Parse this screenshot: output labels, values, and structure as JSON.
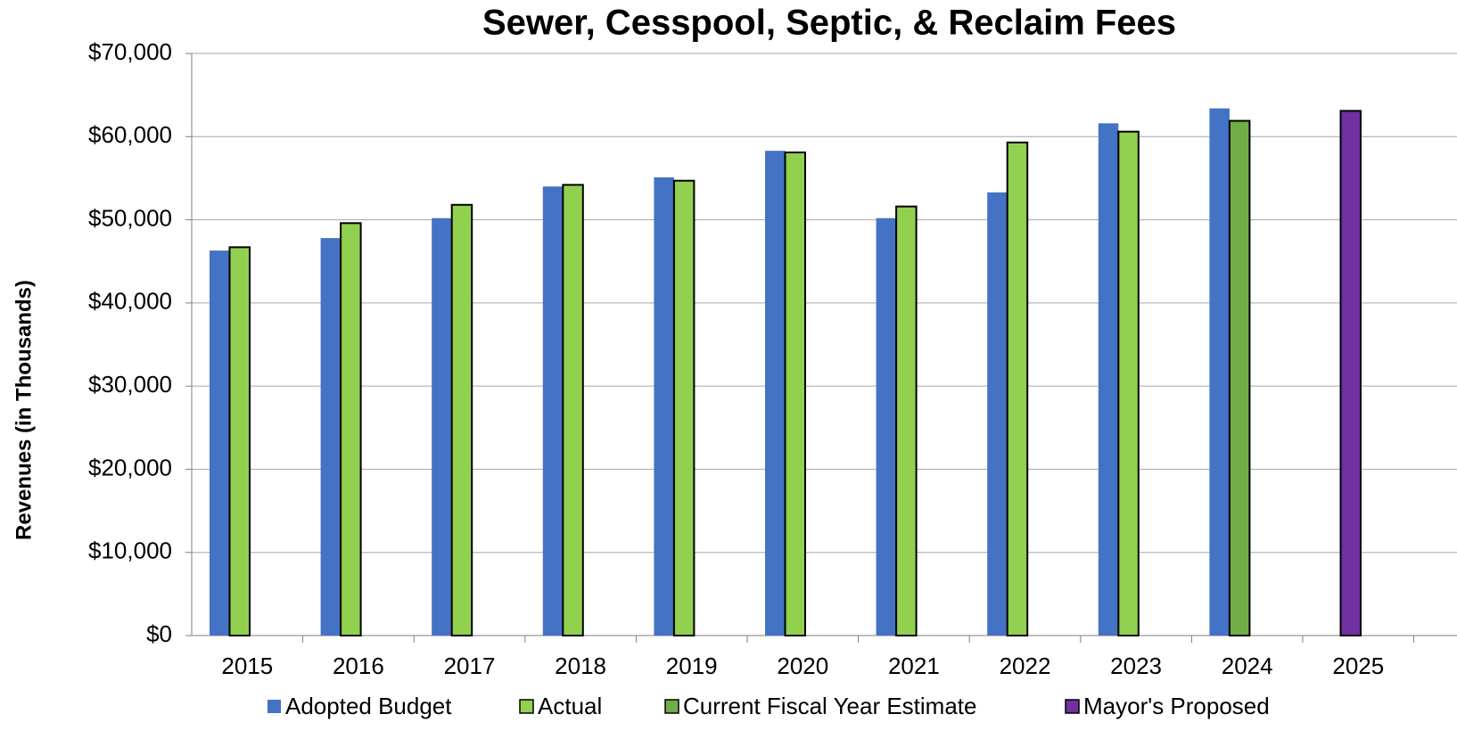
{
  "chart_data": {
    "type": "bar",
    "title": "Sewer, Cesspool, Septic, & Reclaim Fees",
    "ylabel": "Revenues (in Thousands)",
    "categories": [
      "2015",
      "2016",
      "2017",
      "2018",
      "2019",
      "2020",
      "2021",
      "2022",
      "2023",
      "2024",
      "2025"
    ],
    "series": [
      {
        "name": "Adopted Budget",
        "color": "#4472c4",
        "values": [
          46300,
          47800,
          50200,
          54000,
          55100,
          58300,
          50200,
          53300,
          61600,
          63400,
          null
        ]
      },
      {
        "name": "Actual",
        "color": "#92d050",
        "edgecolor": "#000000",
        "values": [
          46700,
          49600,
          51800,
          54200,
          54700,
          58100,
          51600,
          59300,
          60600,
          null,
          null
        ]
      },
      {
        "name": "Current Fiscal Year Estimate",
        "color": "#70ad47",
        "edgecolor": "#000000",
        "values": [
          null,
          null,
          null,
          null,
          null,
          null,
          null,
          null,
          null,
          61900,
          null
        ]
      },
      {
        "name": "Mayor's Proposed",
        "color": "#7030a0",
        "edgecolor": "#000000",
        "values": [
          null,
          null,
          null,
          null,
          null,
          null,
          null,
          null,
          null,
          null,
          63100
        ]
      }
    ],
    "ylim": [
      0,
      70000
    ],
    "yticks": [
      {
        "value": 0,
        "label": "$0"
      },
      {
        "value": 10000,
        "label": "$10,000"
      },
      {
        "value": 20000,
        "label": "$20,000"
      },
      {
        "value": 30000,
        "label": "$30,000"
      },
      {
        "value": 40000,
        "label": "$40,000"
      },
      {
        "value": 50000,
        "label": "$50,000"
      },
      {
        "value": 60000,
        "label": "$60,000"
      },
      {
        "value": 70000,
        "label": "$70,000"
      }
    ],
    "grid": true,
    "legend": "bottom"
  }
}
